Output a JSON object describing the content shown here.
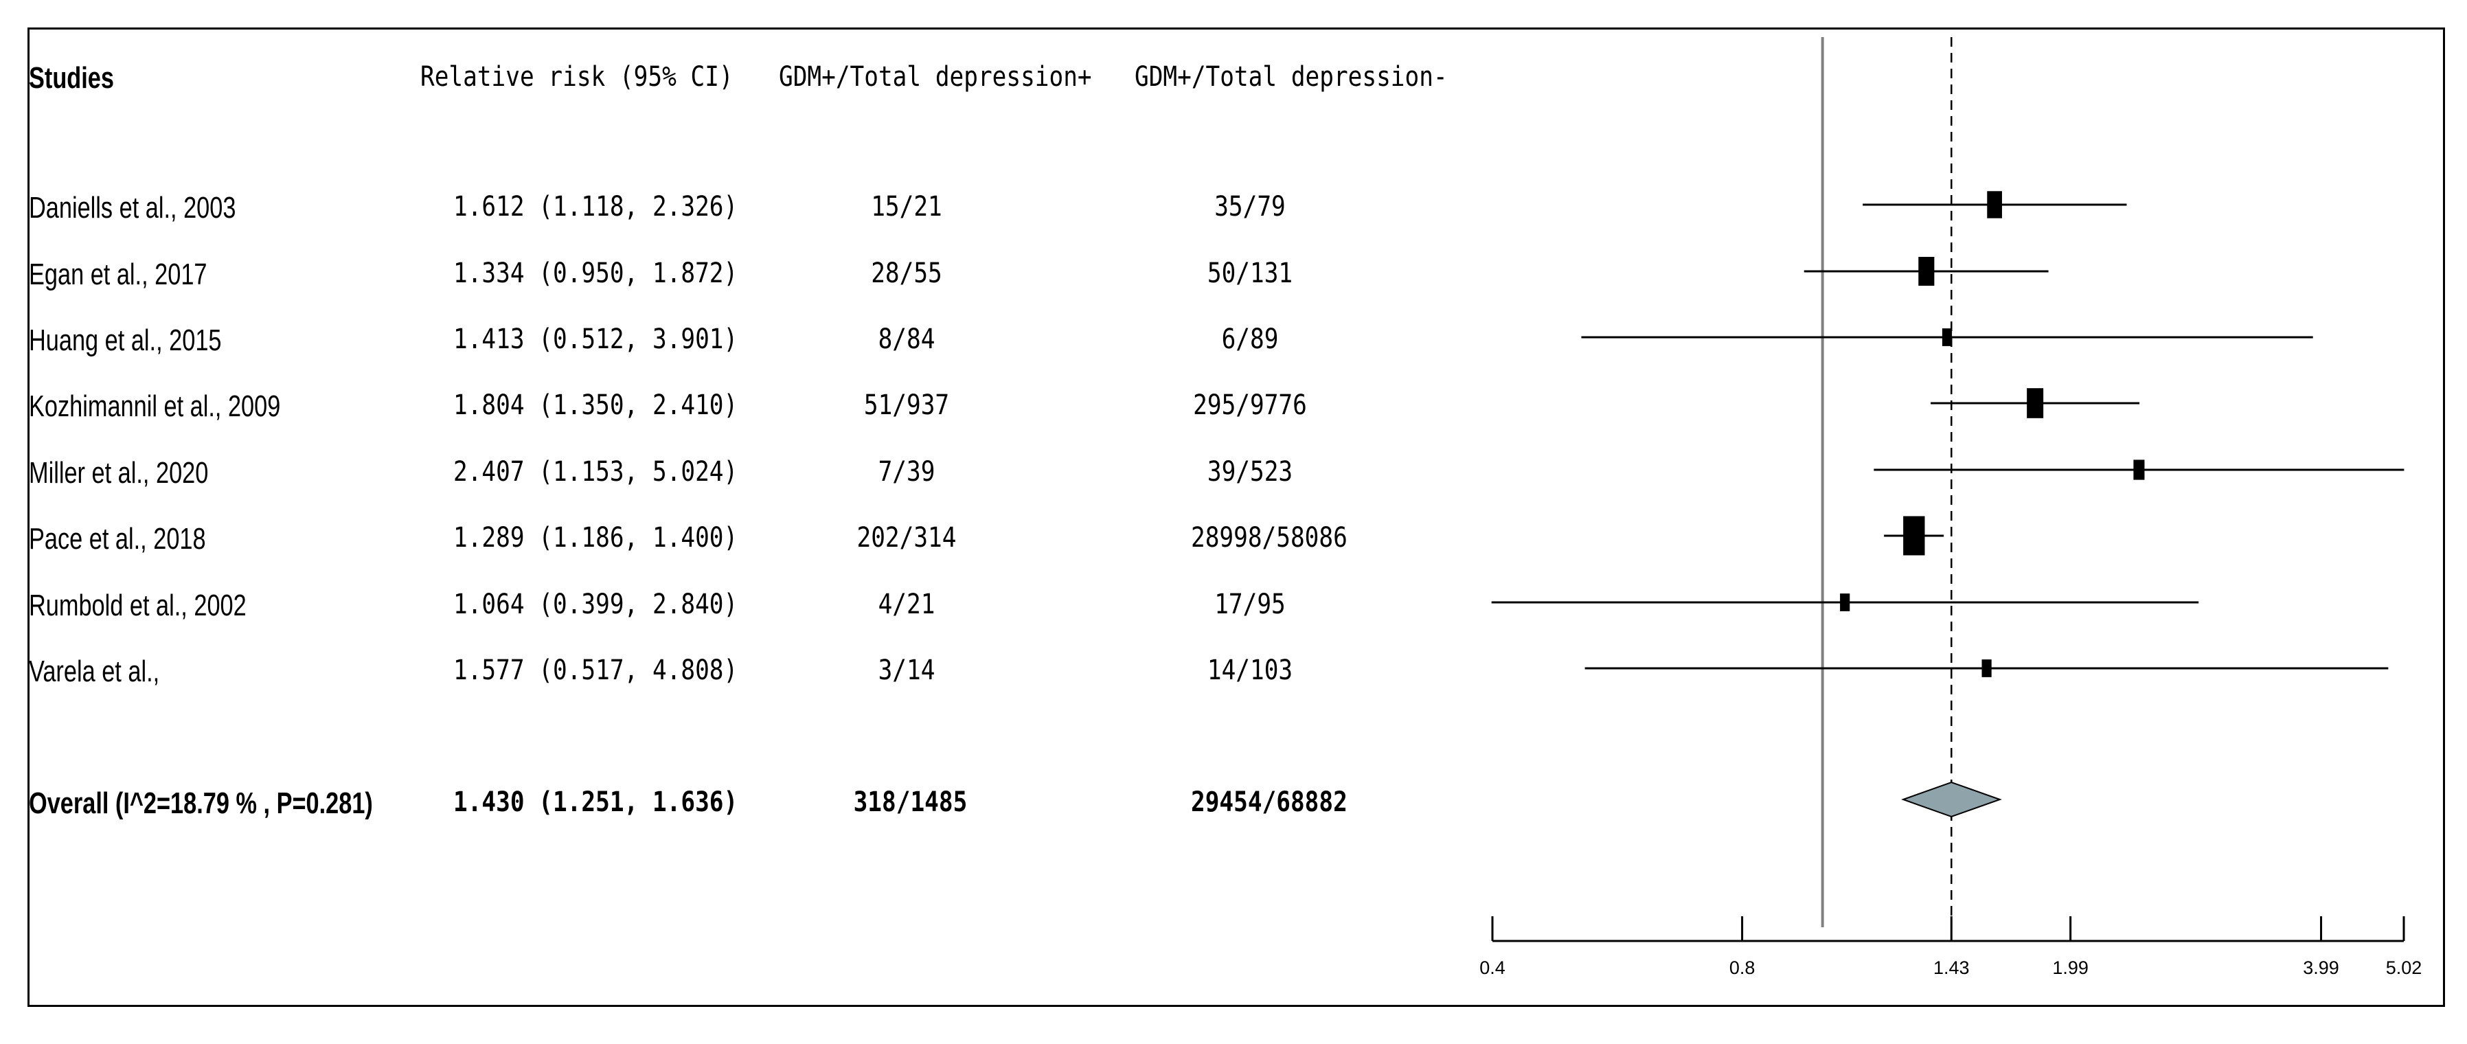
{
  "headers": {
    "studies": "Studies",
    "rr": "Relative risk (95% CI)",
    "gdm_pos": "GDM+/Total depression+",
    "gdm_neg": "GDM+/Total depression-"
  },
  "rows": [
    {
      "study": "Daniells et al., 2003",
      "rr_text": "1.612 (1.118, 2.326)",
      "dep_pos": "15/21",
      "dep_neg": "35/79"
    },
    {
      "study": "Egan et al., 2017",
      "rr_text": "1.334 (0.950, 1.872)",
      "dep_pos": "28/55",
      "dep_neg": "50/131"
    },
    {
      "study": "Huang et al., 2015",
      "rr_text": "1.413 (0.512, 3.901)",
      "dep_pos": "8/84",
      "dep_neg": "6/89"
    },
    {
      "study": "Kozhimannil et al., 2009",
      "rr_text": "1.804 (1.350, 2.410)",
      "dep_pos": "51/937",
      "dep_neg": "295/9776"
    },
    {
      "study": "Miller et al., 2020",
      "rr_text": "2.407 (1.153, 5.024)",
      "dep_pos": "7/39",
      "dep_neg": "39/523"
    },
    {
      "study": "Pace et al., 2018",
      "rr_text": "1.289 (1.186, 1.400)",
      "dep_pos": "202/314",
      "dep_neg": "28998/58086"
    },
    {
      "study": "Rumbold et al., 2002",
      "rr_text": "1.064 (0.399, 2.840)",
      "dep_pos": "4/21",
      "dep_neg": "17/95"
    },
    {
      "study": "Varela et al.,",
      "rr_text": "1.577 (0.517, 4.808)",
      "dep_pos": "3/14",
      "dep_neg": "14/103"
    }
  ],
  "overall": {
    "label": "Overall (I^2=18.79 % , P=0.281)",
    "rr_text": "1.430 (1.251, 1.636)",
    "dep_pos": "318/1485",
    "dep_neg": "29454/68882"
  },
  "chart_data": {
    "type": "forest",
    "x_scale": "log",
    "xlim": [
      0.4,
      5.02
    ],
    "x_ticks": [
      0.4,
      0.8,
      1.43,
      1.99,
      3.99,
      5.02
    ],
    "x_tick_labels": [
      "0.4",
      "0.8",
      "1.43",
      "1.99",
      "3.99",
      "5.02"
    ],
    "null_line": 1,
    "pooled_line": 1.43,
    "studies": [
      {
        "name": "Daniells et al., 2003",
        "rr": 1.612,
        "lo": 1.118,
        "hi": 2.326,
        "weight": 0.14
      },
      {
        "name": "Egan et al., 2017",
        "rr": 1.334,
        "lo": 0.95,
        "hi": 1.872,
        "weight": 0.17
      },
      {
        "name": "Huang et al., 2015",
        "rr": 1.413,
        "lo": 0.512,
        "hi": 3.901,
        "weight": 0.03
      },
      {
        "name": "Kozhimannil et al., 2009",
        "rr": 1.804,
        "lo": 1.35,
        "hi": 2.41,
        "weight": 0.19
      },
      {
        "name": "Miller et al., 2020",
        "rr": 2.407,
        "lo": 1.153,
        "hi": 5.024,
        "weight": 0.05
      },
      {
        "name": "Pace et al., 2018",
        "rr": 1.289,
        "lo": 1.186,
        "hi": 1.4,
        "weight": 0.4
      },
      {
        "name": "Rumbold et al., 2002",
        "rr": 1.064,
        "lo": 0.399,
        "hi": 2.84,
        "weight": 0.03
      },
      {
        "name": "Varela et al.,",
        "rr": 1.577,
        "lo": 0.517,
        "hi": 4.808,
        "weight": 0.03
      }
    ],
    "overall": {
      "rr": 1.43,
      "lo": 1.251,
      "hi": 1.636
    },
    "colors": {
      "marker": "#000000",
      "diamond_fill": "#8fa3aa",
      "null_line": "#808080"
    }
  }
}
